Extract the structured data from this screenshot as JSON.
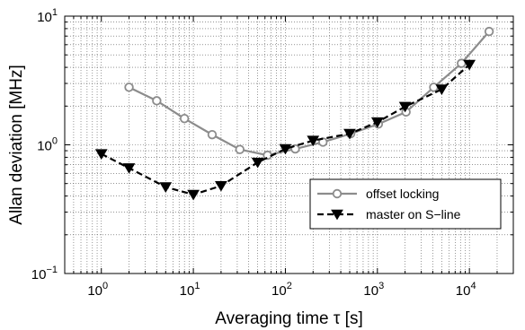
{
  "chart_data": {
    "type": "line",
    "xscale": "log",
    "yscale": "log",
    "xlim": [
      0.4,
      30000
    ],
    "ylim": [
      0.1,
      10
    ],
    "grid": true,
    "xlabel": "Averaging time  τ [s]",
    "ylabel": "Allan deviation [MHz]",
    "x_ticks": [
      {
        "base": "10",
        "exp": "0",
        "value": 1
      },
      {
        "base": "10",
        "exp": "1",
        "value": 10
      },
      {
        "base": "10",
        "exp": "2",
        "value": 100
      },
      {
        "base": "10",
        "exp": "3",
        "value": 1000
      },
      {
        "base": "10",
        "exp": "4",
        "value": 10000
      }
    ],
    "y_ticks": [
      {
        "base": "10",
        "exp": "−1",
        "value": 0.1
      },
      {
        "base": "10",
        "exp": "0",
        "value": 1
      },
      {
        "base": "10",
        "exp": "1",
        "value": 10
      }
    ],
    "legend_position": "bottom-right",
    "series": [
      {
        "name": "offset locking",
        "color": "#8c8c8c",
        "marker": "circle",
        "line": "solid",
        "x": [
          2,
          4,
          8,
          16,
          32,
          64,
          128,
          256,
          512,
          1024,
          2048,
          4096,
          8192,
          16384
        ],
        "y": [
          2.8,
          2.2,
          1.6,
          1.2,
          0.92,
          0.83,
          0.93,
          1.05,
          1.22,
          1.45,
          1.8,
          2.8,
          4.3,
          7.6
        ]
      },
      {
        "name": "master on S−line",
        "color": "#000000",
        "marker": "triangle-down",
        "line": "dashed",
        "x": [
          1,
          2,
          5,
          10,
          20,
          50,
          100,
          200,
          500,
          1000,
          2000,
          5000,
          10000
        ],
        "y": [
          0.85,
          0.66,
          0.47,
          0.41,
          0.48,
          0.73,
          0.93,
          1.08,
          1.22,
          1.5,
          1.98,
          2.7,
          4.2
        ]
      }
    ]
  }
}
